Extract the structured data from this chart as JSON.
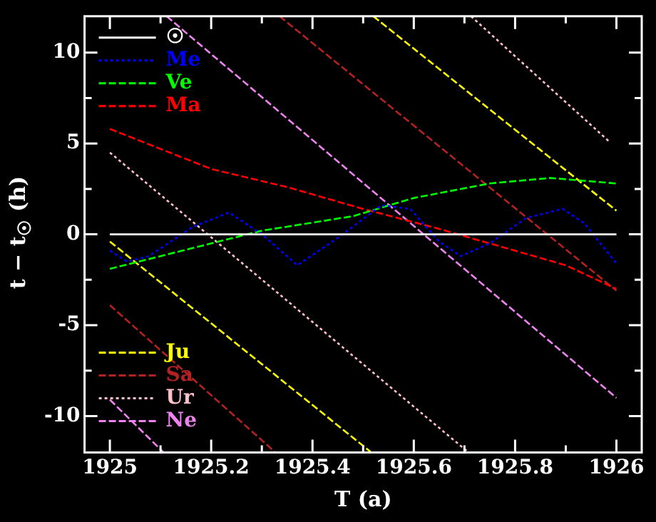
{
  "chart_data": {
    "type": "line",
    "xlabel": "T (a)",
    "ylabel": "t − t$_{☉}$ (h)",
    "xlim": [
      1924.95,
      1926.05
    ],
    "ylim": [
      -12,
      12
    ],
    "xticks": [
      1925,
      {
        "value": 1925.1,
        "label": null
      },
      1925.2,
      {
        "value": 1925.3,
        "label": null
      },
      1925.4,
      {
        "value": 1925.5,
        "label": null
      },
      1925.6,
      {
        "value": 1925.7,
        "label": null
      },
      1925.8,
      {
        "value": 1925.9,
        "label": null
      },
      1926
    ],
    "yticks": [
      -10,
      {
        "value": -7.5,
        "label": null
      },
      -5,
      {
        "value": -2.5,
        "label": null
      },
      0,
      {
        "value": 2.5,
        "label": null
      },
      5,
      {
        "value": 7.5,
        "label": null
      },
      10
    ],
    "grid": false,
    "legend": "left",
    "marker": "none",
    "series": [
      {
        "name": "☉",
        "color": "#ffffff",
        "line_style": "solid",
        "x": [
          1925,
          1926
        ],
        "values": [
          0,
          0
        ]
      },
      {
        "name": "Me",
        "color": "#0000ff",
        "line_style": "dotted",
        "x": [
          1925,
          1925.034,
          1925.077,
          1925.163,
          1925.235,
          1925.3,
          1925.37,
          1925.45,
          1925.536,
          1925.593,
          1925.65,
          1925.693,
          1925.75,
          1925.822,
          1925.894,
          1925.937,
          1926
        ],
        "values": [
          -0.9,
          -1.5,
          -1.2,
          0.4,
          1.2,
          0,
          -1.7,
          -0.2,
          1.6,
          1.4,
          -0.4,
          -1.2,
          -0.5,
          0.9,
          1.4,
          0.6,
          -1.6
        ]
      },
      {
        "name": "Ve",
        "color": "#00ff00",
        "line_style": "dashed",
        "x": [
          1925,
          1925.1,
          1925.2,
          1925.3,
          1925.48,
          1925.6,
          1925.75,
          1925.87,
          1926
        ],
        "values": [
          -1.9,
          -1.2,
          -0.5,
          0.2,
          1.0,
          2.0,
          2.8,
          3.1,
          2.8
        ]
      },
      {
        "name": "Ma",
        "color": "#ff0000",
        "line_style": "dashed",
        "x": [
          1925,
          1925.2,
          1925.35,
          1925.5,
          1925.65,
          1925.8,
          1925.9,
          1926
        ],
        "values": [
          5.8,
          3.6,
          2.6,
          1.4,
          0.3,
          -0.9,
          -1.7,
          -3.0
        ]
      },
      {
        "name": "Ju",
        "color": "#ffff00",
        "line_style": "dashed",
        "x": [
          1925,
          1925.516
        ],
        "values": [
          -0.4,
          -12
        ]
      },
      {
        "color": "#ffff00",
        "line_style": "dashed",
        "x": [
          1925.52,
          1926
        ],
        "values": [
          12,
          1.3
        ]
      },
      {
        "name": "Sa",
        "color": "#b22222",
        "line_style": "dashed",
        "x": [
          1925,
          1925.327
        ],
        "values": [
          -3.9,
          -12
        ]
      },
      {
        "color": "#b22222",
        "line_style": "dashed",
        "x": [
          1925.335,
          1926
        ],
        "values": [
          12,
          -3.1
        ]
      },
      {
        "name": "Ur",
        "color": "#ffc0cb",
        "line_style": "dotted",
        "x": [
          1925,
          1925.708
        ],
        "values": [
          4.5,
          -12
        ]
      },
      {
        "color": "#ffc0cb",
        "line_style": "dotted",
        "x": [
          1925.713,
          1925.986
        ],
        "values": [
          12,
          5.1
        ]
      },
      {
        "name": "Ne",
        "color": "#ee82ee",
        "line_style": "dashed",
        "x": [
          1925,
          1925.106
        ],
        "values": [
          -9.1,
          -12
        ]
      },
      {
        "color": "#ee82ee",
        "line_style": "dashed",
        "x": [
          1925.112,
          1926
        ],
        "values": [
          12,
          -9.0
        ]
      }
    ]
  }
}
